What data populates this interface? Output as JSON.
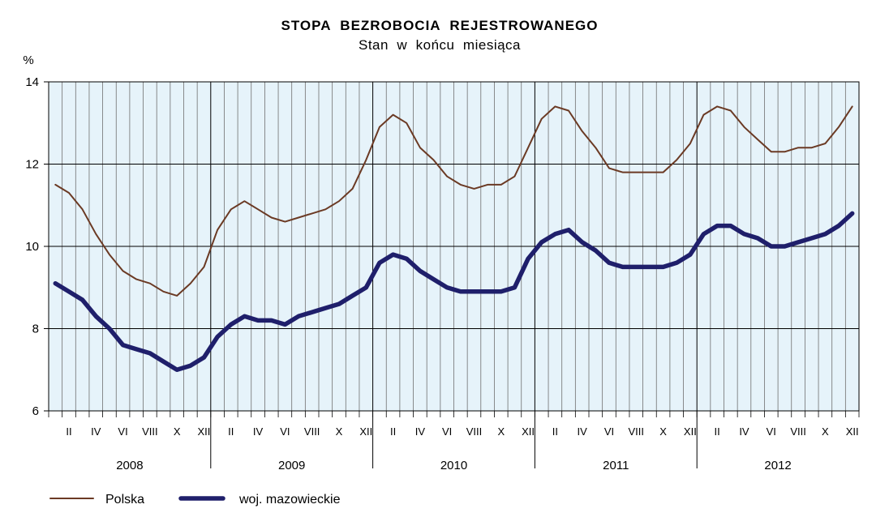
{
  "chart_data": {
    "type": "line",
    "title": "STOPA  BEZROBOCIA  REJESTROWANEGO",
    "subtitle": "Stan  w  końcu  miesiąca",
    "ylabel": "%",
    "ylim": [
      6,
      14
    ],
    "yticks": [
      "6",
      "8",
      "10",
      "12",
      "14"
    ],
    "grid": true,
    "legend_position": "bottom-left",
    "month_labels": [
      "II",
      "IV",
      "VI",
      "VIII",
      "X",
      "XII"
    ],
    "years": [
      "2008",
      "2009",
      "2010",
      "2011",
      "2012"
    ],
    "colors": {
      "plot_bg": "#e6f3fa",
      "polska": "#6b3a24",
      "mazowieckie": "#1f1f6b",
      "grid_minor": "#707070",
      "grid_major": "#000000"
    },
    "series": [
      {
        "name": "Polska",
        "values": [
          11.5,
          11.3,
          10.9,
          10.3,
          9.8,
          9.4,
          9.2,
          9.1,
          8.9,
          8.8,
          9.1,
          9.5,
          10.4,
          10.9,
          11.1,
          10.9,
          10.7,
          10.6,
          10.7,
          10.8,
          10.9,
          11.1,
          11.4,
          12.1,
          12.9,
          13.2,
          13.0,
          12.4,
          12.1,
          11.7,
          11.5,
          11.4,
          11.5,
          11.5,
          11.7,
          12.4,
          13.1,
          13.4,
          13.3,
          12.8,
          12.4,
          11.9,
          11.8,
          11.8,
          11.8,
          11.8,
          12.1,
          12.5,
          13.2,
          13.4,
          13.3,
          12.9,
          12.6,
          12.3,
          12.3,
          12.4,
          12.4,
          12.5,
          12.9,
          13.4
        ]
      },
      {
        "name": "woj. mazowieckie",
        "values": [
          9.1,
          8.9,
          8.7,
          8.3,
          8.0,
          7.6,
          7.5,
          7.4,
          7.2,
          7.0,
          7.1,
          7.3,
          7.8,
          8.1,
          8.3,
          8.2,
          8.2,
          8.1,
          8.3,
          8.4,
          8.5,
          8.6,
          8.8,
          9.0,
          9.6,
          9.8,
          9.7,
          9.4,
          9.2,
          9.0,
          8.9,
          8.9,
          8.9,
          8.9,
          9.0,
          9.7,
          10.1,
          10.3,
          10.4,
          10.1,
          9.9,
          9.6,
          9.5,
          9.5,
          9.5,
          9.5,
          9.6,
          9.8,
          10.3,
          10.5,
          10.5,
          10.3,
          10.2,
          10.0,
          10.0,
          10.1,
          10.2,
          10.3,
          10.5,
          10.8
        ]
      }
    ]
  }
}
